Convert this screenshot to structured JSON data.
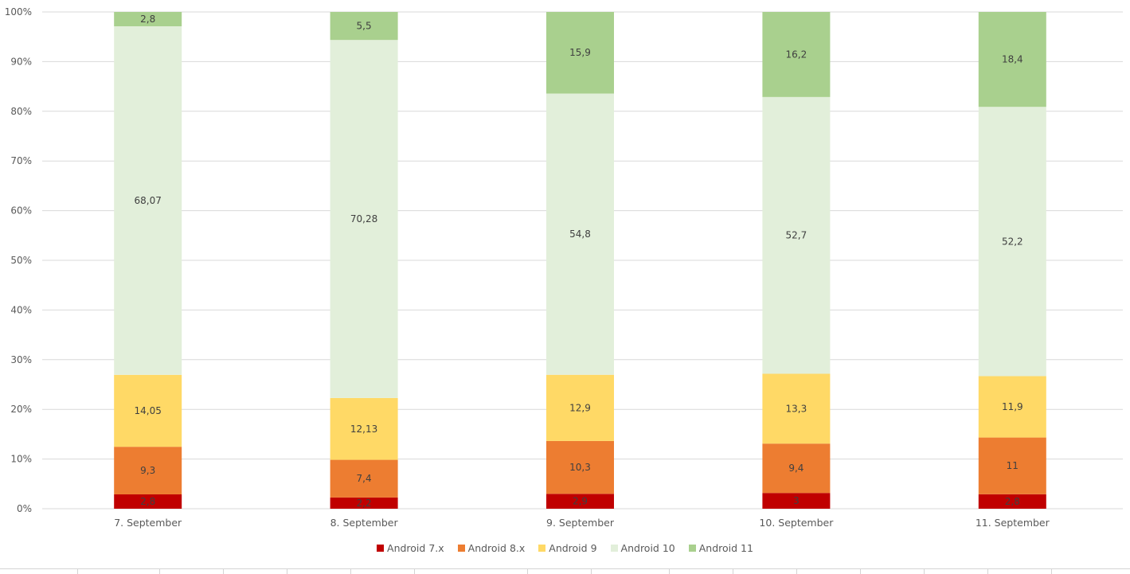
{
  "chart_data": {
    "type": "bar",
    "stacked": "percent",
    "title": "",
    "xlabel": "",
    "ylabel": "",
    "ylim": [
      0,
      100
    ],
    "y_ticks": [
      "0%",
      "10%",
      "20%",
      "30%",
      "40%",
      "50%",
      "60%",
      "70%",
      "80%",
      "90%",
      "100%"
    ],
    "grid": true,
    "legend_position": "bottom",
    "categories": [
      "7. September",
      "8. September",
      "9. September",
      "10. September",
      "11. September"
    ],
    "series": [
      {
        "name": "Android 7.x",
        "color": "#c00000",
        "values": [
          2.8,
          2.2,
          2.9,
          3,
          2.8
        ],
        "labels": [
          "2,8",
          "2,2",
          "2,9",
          "3",
          "2,8"
        ]
      },
      {
        "name": "Android 8.x",
        "color": "#ed7d31",
        "values": [
          9.3,
          7.4,
          10.3,
          9.4,
          11
        ],
        "labels": [
          "9,3",
          "7,4",
          "10,3",
          "9,4",
          "11"
        ]
      },
      {
        "name": "Android 9",
        "color": "#ffd966",
        "values": [
          14.05,
          12.13,
          12.9,
          13.3,
          11.9
        ],
        "labels": [
          "14,05",
          "12,13",
          "12,9",
          "13,3",
          "11,9"
        ]
      },
      {
        "name": "Android 10",
        "color": "#e2efda",
        "values": [
          68.07,
          70.28,
          54.8,
          52.7,
          52.2
        ],
        "labels": [
          "68,07",
          "70,28",
          "54,8",
          "52,7",
          "52,2"
        ]
      },
      {
        "name": "Android 11",
        "color": "#a9d08e",
        "values": [
          2.8,
          5.5,
          15.9,
          16.2,
          18.4
        ],
        "labels": [
          "2,8",
          "5,5",
          "15,9",
          "16,2",
          "18,4"
        ]
      }
    ]
  }
}
